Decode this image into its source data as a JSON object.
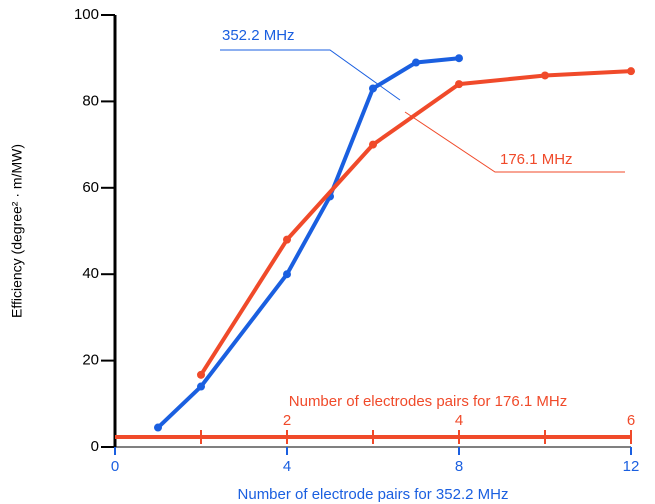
{
  "chart_data": {
    "type": "line",
    "ylabel": "Efficiency (degree² · m/MW)",
    "ylim": [
      0,
      100
    ],
    "yticks": [
      0,
      20,
      40,
      60,
      80,
      100
    ],
    "xlabel": "Number of electrode pairs for 352.2 MHz",
    "xlim": [
      0,
      12
    ],
    "xticks": [
      0,
      4,
      8,
      12
    ],
    "x2label": "Number of electrodes pairs for 176.1 MHz",
    "x2lim": [
      0,
      6
    ],
    "x2ticks": [
      2,
      4,
      6
    ],
    "x2minorticks": [
      1,
      3,
      5
    ],
    "x2color": "#f04a2a",
    "series": [
      {
        "name": "352.2 MHz",
        "color": "#1a5fe0",
        "axis": "x",
        "x": [
          1,
          2,
          4,
          5,
          6,
          7,
          8
        ],
        "values": [
          4.5,
          14,
          40,
          58,
          83,
          89,
          90
        ]
      },
      {
        "name": "176.1 MHz",
        "color": "#f04a2a",
        "axis": "x2",
        "x": [
          1,
          2,
          3,
          4,
          5,
          6
        ],
        "values": [
          16.7,
          48,
          70,
          84,
          86,
          87
        ]
      }
    ]
  }
}
